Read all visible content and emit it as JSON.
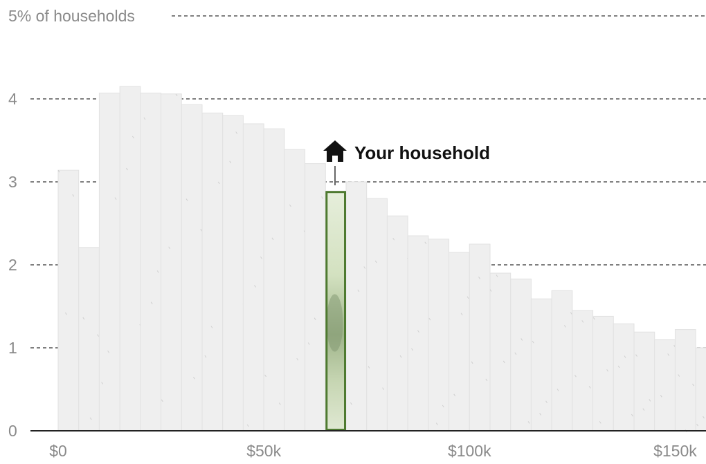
{
  "chart_data": {
    "type": "bar",
    "ylabel": "5% of households",
    "ylim": [
      0,
      5
    ],
    "ytick_values": [
      0,
      1,
      2,
      3,
      4
    ],
    "ytick_labels": [
      "0",
      "1",
      "2",
      "3",
      "4"
    ],
    "xlim": [
      0,
      157500
    ],
    "xtick_values": [
      0,
      50000,
      100000,
      150000
    ],
    "xtick_labels": [
      "$0",
      "$50k",
      "$100k",
      "$150k"
    ],
    "bin_width": 5000,
    "bin_starts": [
      0,
      5000,
      10000,
      15000,
      20000,
      25000,
      30000,
      35000,
      40000,
      45000,
      50000,
      55000,
      60000,
      65000,
      70000,
      75000,
      80000,
      85000,
      90000,
      95000,
      100000,
      105000,
      110000,
      115000,
      120000,
      125000,
      130000,
      135000,
      140000,
      145000,
      150000,
      155000
    ],
    "values": [
      3.14,
      2.21,
      4.07,
      4.15,
      4.07,
      4.06,
      3.93,
      3.83,
      3.8,
      3.7,
      3.64,
      3.39,
      3.22,
      2.89,
      3.0,
      2.8,
      2.59,
      2.35,
      2.31,
      2.15,
      2.25,
      1.9,
      1.83,
      1.59,
      1.69,
      1.45,
      1.38,
      1.29,
      1.19,
      1.1,
      1.22,
      1.0
    ],
    "highlight_index": 13,
    "highlight_label": "Your household",
    "grid": true,
    "legend": "none"
  },
  "colors": {
    "bar_fill": "#efefef",
    "bar_stroke": "#e2e2e2",
    "highlight_stroke": "#4e7a30",
    "highlight_fill": "#c9d8b4",
    "axis": "#222222",
    "text": "#8a8a8a"
  },
  "icons": {
    "household": "house-icon"
  }
}
